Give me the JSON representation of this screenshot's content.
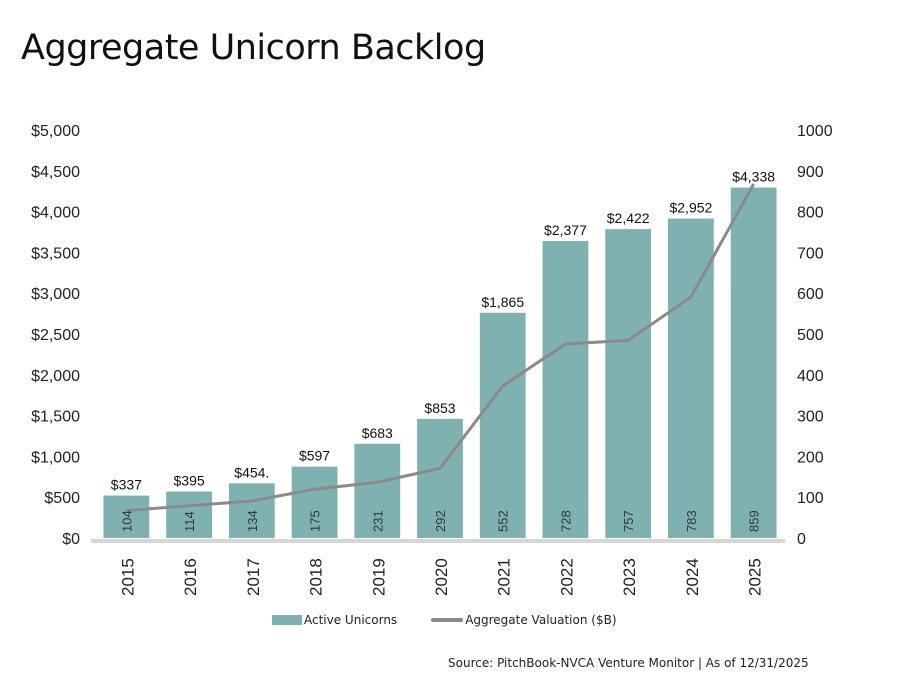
{
  "title": "Aggregate Unicorn Backlog",
  "source": "Source: PitchBook-NVCA Venture Monitor | As of 12/31/2025",
  "colors": {
    "bar": "#7fb1b0",
    "line": "#8a8a8a",
    "axis": "#d6d6d6"
  },
  "chart_data": {
    "type": "bar",
    "title": "Aggregate Unicorn Backlog",
    "categories": [
      "2015",
      "2016",
      "2017",
      "2018",
      "2019",
      "2020",
      "2021",
      "2022",
      "2023",
      "2024",
      "2025"
    ],
    "series": [
      {
        "name": "Active Unicorns",
        "kind": "bar",
        "axis": "right",
        "values": [
          104,
          114,
          134,
          175,
          231,
          292,
          552,
          728,
          757,
          783,
          859
        ],
        "labels": [
          "104",
          "114",
          "134",
          "175",
          "231",
          "292",
          "552",
          "728",
          "757",
          "783",
          "859"
        ]
      },
      {
        "name": "Aggregate Valuation ($B)",
        "kind": "line",
        "axis": "left",
        "values": [
          337,
          395,
          454,
          597,
          683,
          853,
          1865,
          2377,
          2422,
          2952,
          4338
        ],
        "labels": [
          "$337",
          "$395",
          "$454.",
          "$597",
          "$683",
          "$853",
          "$1,865",
          "$2,377",
          "$2,422",
          "$2,952",
          "$4,338"
        ]
      }
    ],
    "left_axis": {
      "range": [
        0,
        5000
      ],
      "ticks": [
        "$0",
        "$500",
        "$1,000",
        "$1,500",
        "$2,000",
        "$2,500",
        "$3,000",
        "$3,500",
        "$4,000",
        "$4,500",
        "$5,000"
      ],
      "tick_values": [
        0,
        500,
        1000,
        1500,
        2000,
        2500,
        3000,
        3500,
        4000,
        4500,
        5000
      ]
    },
    "right_axis": {
      "range": [
        0,
        1000
      ],
      "ticks": [
        "0",
        "100",
        "200",
        "300",
        "400",
        "500",
        "600",
        "700",
        "800",
        "900",
        "1000"
      ],
      "tick_values": [
        0,
        100,
        200,
        300,
        400,
        500,
        600,
        700,
        800,
        900,
        1000
      ]
    },
    "xlabel": "",
    "ylabel": "",
    "grid": false,
    "legend": {
      "position": "bottom",
      "entries": [
        "Active Unicorns",
        "Aggregate Valuation ($B)"
      ]
    }
  }
}
